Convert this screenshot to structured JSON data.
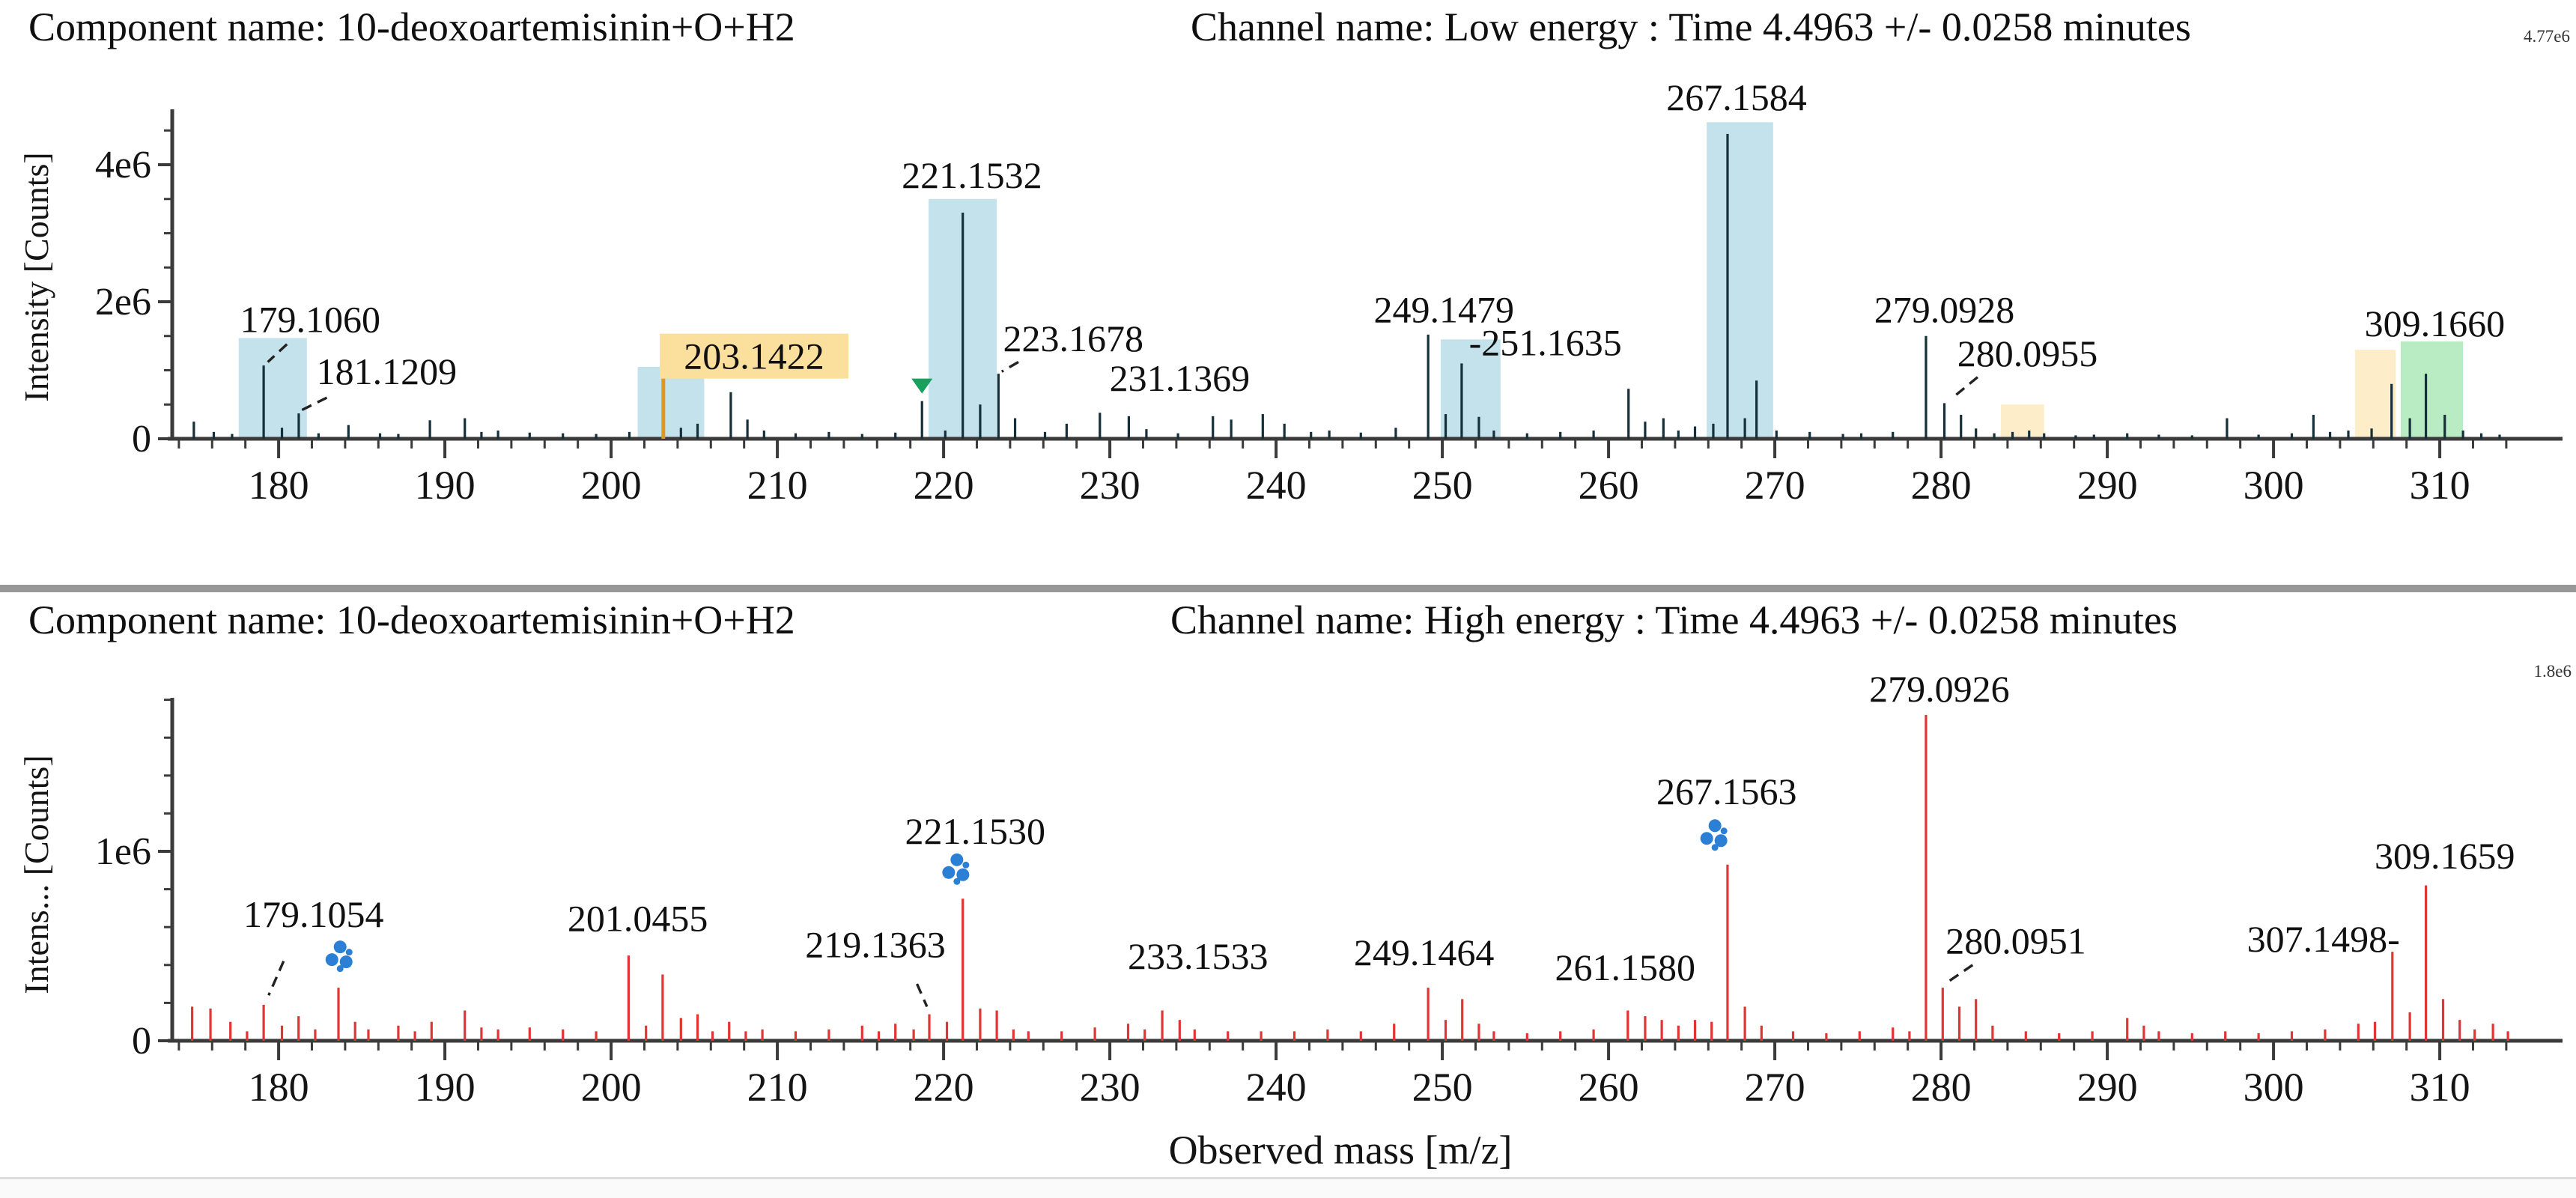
{
  "page": {
    "background": "#ffffff",
    "divider_color": "#979797"
  },
  "chart_data": [
    {
      "type": "bar",
      "subtype": "mass-spectrum-stick",
      "component_title": "Component name: 10-deoxoartemisinin+O+H2",
      "channel_title": "Channel name: Low energy : Time 4.4963 +/- 0.0258 minutes",
      "max_intensity_label": "4.77e6",
      "ylabel": "Intensity [Counts]",
      "xlabel": "",
      "xlim": [
        173.6,
        315.9
      ],
      "ylim_e6": [
        0,
        4.77
      ],
      "x_major_ticks": [
        180,
        190,
        200,
        210,
        220,
        230,
        240,
        250,
        260,
        270,
        280,
        290,
        300,
        310
      ],
      "x_minor_step": 2,
      "y_tick_labels": [
        {
          "v": 0,
          "t": "0"
        },
        {
          "v": 2,
          "t": "2e6"
        },
        {
          "v": 4,
          "t": "4e6"
        }
      ],
      "y_minor_step": 0.5,
      "peak_color": "#16303a",
      "colored_peaks": [
        [
          203.14,
          0.88,
          "#e2961c"
        ]
      ],
      "peaks": [
        [
          174.9,
          0.25
        ],
        [
          176.1,
          0.1
        ],
        [
          177.2,
          0.07
        ],
        [
          179.1,
          1.07
        ],
        [
          180.2,
          0.16
        ],
        [
          181.21,
          0.37
        ],
        [
          182.4,
          0.08
        ],
        [
          184.2,
          0.2
        ],
        [
          186.1,
          0.08
        ],
        [
          187.2,
          0.07
        ],
        [
          189.1,
          0.27
        ],
        [
          191.2,
          0.3
        ],
        [
          192.2,
          0.1
        ],
        [
          193.2,
          0.12
        ],
        [
          195.1,
          0.09
        ],
        [
          197.1,
          0.08
        ],
        [
          199.1,
          0.07
        ],
        [
          201.1,
          0.1
        ],
        [
          204.2,
          0.16
        ],
        [
          205.2,
          0.22
        ],
        [
          207.2,
          0.68
        ],
        [
          208.2,
          0.28
        ],
        [
          209.2,
          0.12
        ],
        [
          211.1,
          0.08
        ],
        [
          213.1,
          0.1
        ],
        [
          215.1,
          0.07
        ],
        [
          217.1,
          0.09
        ],
        [
          218.7,
          0.55
        ],
        [
          220.1,
          0.12
        ],
        [
          221.153,
          3.3
        ],
        [
          222.2,
          0.5
        ],
        [
          223.3,
          0.95
        ],
        [
          224.3,
          0.3
        ],
        [
          226.1,
          0.1
        ],
        [
          227.4,
          0.22
        ],
        [
          229.4,
          0.38
        ],
        [
          231.14,
          0.33
        ],
        [
          232.2,
          0.14
        ],
        [
          234.1,
          0.08
        ],
        [
          236.2,
          0.33
        ],
        [
          237.3,
          0.28
        ],
        [
          239.2,
          0.36
        ],
        [
          240.5,
          0.22
        ],
        [
          242.1,
          0.1
        ],
        [
          243.2,
          0.12
        ],
        [
          245.1,
          0.09
        ],
        [
          247.2,
          0.16
        ],
        [
          249.148,
          1.52
        ],
        [
          250.2,
          0.36
        ],
        [
          251.164,
          1.1
        ],
        [
          252.2,
          0.32
        ],
        [
          253.1,
          0.12
        ],
        [
          255.1,
          0.08
        ],
        [
          257.1,
          0.1
        ],
        [
          259.1,
          0.12
        ],
        [
          261.2,
          0.73
        ],
        [
          262.2,
          0.25
        ],
        [
          263.3,
          0.3
        ],
        [
          264.2,
          0.12
        ],
        [
          265.2,
          0.18
        ],
        [
          266.3,
          0.22
        ],
        [
          267.158,
          4.45
        ],
        [
          268.2,
          0.3
        ],
        [
          268.9,
          0.85
        ],
        [
          270.1,
          0.12
        ],
        [
          272.1,
          0.1
        ],
        [
          274.1,
          0.07
        ],
        [
          275.2,
          0.08
        ],
        [
          277.1,
          0.1
        ],
        [
          279.093,
          1.5
        ],
        [
          280.2,
          0.52
        ],
        [
          281.2,
          0.35
        ],
        [
          282.1,
          0.15
        ],
        [
          283.2,
          0.08
        ],
        [
          284.3,
          0.1
        ],
        [
          285.3,
          0.12
        ],
        [
          286.2,
          0.08
        ],
        [
          288.1,
          0.05
        ],
        [
          289.2,
          0.06
        ],
        [
          291.2,
          0.08
        ],
        [
          293.1,
          0.06
        ],
        [
          295.1,
          0.05
        ],
        [
          297.2,
          0.3
        ],
        [
          299.1,
          0.06
        ],
        [
          301.1,
          0.08
        ],
        [
          302.4,
          0.35
        ],
        [
          303.4,
          0.1
        ],
        [
          304.5,
          0.12
        ],
        [
          305.9,
          0.15
        ],
        [
          307.1,
          0.8
        ],
        [
          308.2,
          0.3
        ],
        [
          309.166,
          0.95
        ],
        [
          310.3,
          0.35
        ],
        [
          311.4,
          0.12
        ],
        [
          312.5,
          0.08
        ],
        [
          313.6,
          0.06
        ]
      ],
      "bands": [
        {
          "from": 177.6,
          "to": 181.7,
          "top": 1.47,
          "color": "#c3e2ec"
        },
        {
          "from": 201.6,
          "to": 205.6,
          "top": 1.05,
          "color": "#c3e2ec"
        },
        {
          "from": 219.1,
          "to": 223.2,
          "top": 3.5,
          "color": "#c3e2ec"
        },
        {
          "from": 249.9,
          "to": 253.5,
          "top": 1.45,
          "color": "#c3e2ec"
        },
        {
          "from": 265.9,
          "to": 269.9,
          "top": 4.62,
          "color": "#c3e2ec"
        },
        {
          "from": 283.6,
          "to": 286.2,
          "top": 0.5,
          "color": "#fdeec9"
        },
        {
          "from": 304.9,
          "to": 307.35,
          "top": 1.3,
          "color": "#fdeec9"
        },
        {
          "from": 307.65,
          "to": 311.4,
          "top": 1.42,
          "color": "#baecc4"
        }
      ],
      "labels": [
        {
          "t": "179.1060",
          "x": 181.9,
          "y": 1.56,
          "leader": [
            180.5,
            1.38,
            179.35,
            1.12
          ]
        },
        {
          "t": "181.1209",
          "x": 186.5,
          "y": 0.8,
          "leader": [
            182.9,
            0.6,
            181.4,
            0.42
          ]
        },
        {
          "t": "203.1422",
          "x": 208.6,
          "y": 1.02,
          "box": true,
          "box_color": "#fbdf9d"
        },
        {
          "t": "221.1532",
          "x": 221.7,
          "y": 3.66
        },
        {
          "t": "223.1678",
          "x": 227.8,
          "y": 1.28,
          "leader": [
            224.5,
            1.12,
            223.5,
            0.98
          ]
        },
        {
          "t": "231.1369",
          "x": 234.2,
          "y": 0.7
        },
        {
          "t": "249.1479",
          "x": 250.1,
          "y": 1.7
        },
        {
          "t": "-251.1635",
          "x": 256.2,
          "y": 1.22
        },
        {
          "t": "267.1584",
          "x": 267.7,
          "y": 4.8
        },
        {
          "t": "279.0928",
          "x": 280.2,
          "y": 1.7
        },
        {
          "t": "280.0955",
          "x": 285.2,
          "y": 1.06,
          "leader": [
            282.2,
            0.9,
            280.6,
            0.58
          ]
        },
        {
          "t": "309.1660",
          "x": 309.7,
          "y": 1.5
        }
      ],
      "markers": [
        {
          "kind": "triangle-down",
          "x": 218.7,
          "y": 0.78,
          "color": "#18a15c"
        }
      ]
    },
    {
      "type": "bar",
      "subtype": "mass-spectrum-stick",
      "component_title": "Component name: 10-deoxoartemisinin+O+H2",
      "channel_title": "Channel name: High energy : Time 4.4963 +/- 0.0258 minutes",
      "max_intensity_label": "1.8e6",
      "ylabel": "Intens... [Counts]",
      "xlabel": "Observed mass [m/z]",
      "xlim": [
        173.6,
        315.9
      ],
      "ylim_e6": [
        0,
        1.81
      ],
      "x_major_ticks": [
        180,
        190,
        200,
        210,
        220,
        230,
        240,
        250,
        260,
        270,
        280,
        290,
        300,
        310
      ],
      "x_minor_step": 2,
      "y_tick_labels": [
        {
          "v": 0,
          "t": "0"
        },
        {
          "v": 1,
          "t": "1e6"
        }
      ],
      "y_minor_step": 0.2,
      "peak_color": "#e13535",
      "colored_peaks": [],
      "peaks": [
        [
          174.8,
          0.18
        ],
        [
          175.9,
          0.17
        ],
        [
          177.1,
          0.1
        ],
        [
          178.1,
          0.05
        ],
        [
          179.1,
          0.19
        ],
        [
          180.2,
          0.08
        ],
        [
          181.2,
          0.13
        ],
        [
          182.2,
          0.06
        ],
        [
          183.6,
          0.28
        ],
        [
          184.6,
          0.1
        ],
        [
          185.4,
          0.06
        ],
        [
          187.2,
          0.08
        ],
        [
          188.2,
          0.05
        ],
        [
          189.2,
          0.1
        ],
        [
          191.2,
          0.16
        ],
        [
          192.2,
          0.07
        ],
        [
          193.2,
          0.06
        ],
        [
          195.1,
          0.07
        ],
        [
          197.1,
          0.06
        ],
        [
          199.1,
          0.05
        ],
        [
          201.05,
          0.45
        ],
        [
          202.1,
          0.08
        ],
        [
          203.1,
          0.35
        ],
        [
          204.2,
          0.12
        ],
        [
          205.2,
          0.14
        ],
        [
          206.1,
          0.05
        ],
        [
          207.1,
          0.1
        ],
        [
          208.1,
          0.05
        ],
        [
          209.1,
          0.06
        ],
        [
          211.1,
          0.05
        ],
        [
          213.1,
          0.06
        ],
        [
          215.1,
          0.08
        ],
        [
          216.1,
          0.05
        ],
        [
          217.1,
          0.09
        ],
        [
          218.2,
          0.06
        ],
        [
          219.14,
          0.14
        ],
        [
          220.2,
          0.1
        ],
        [
          221.153,
          0.75
        ],
        [
          222.2,
          0.17
        ],
        [
          223.2,
          0.16
        ],
        [
          224.2,
          0.06
        ],
        [
          225.1,
          0.05
        ],
        [
          227.1,
          0.05
        ],
        [
          229.1,
          0.07
        ],
        [
          231.1,
          0.09
        ],
        [
          232.1,
          0.06
        ],
        [
          233.153,
          0.16
        ],
        [
          234.2,
          0.11
        ],
        [
          235.1,
          0.06
        ],
        [
          237.1,
          0.05
        ],
        [
          239.1,
          0.05
        ],
        [
          241.1,
          0.05
        ],
        [
          243.1,
          0.06
        ],
        [
          245.1,
          0.05
        ],
        [
          247.1,
          0.09
        ],
        [
          249.146,
          0.28
        ],
        [
          250.2,
          0.11
        ],
        [
          251.2,
          0.22
        ],
        [
          252.2,
          0.09
        ],
        [
          253.1,
          0.05
        ],
        [
          255.1,
          0.04
        ],
        [
          257.1,
          0.05
        ],
        [
          259.1,
          0.06
        ],
        [
          261.158,
          0.16
        ],
        [
          262.2,
          0.13
        ],
        [
          263.2,
          0.11
        ],
        [
          264.2,
          0.08
        ],
        [
          265.2,
          0.11
        ],
        [
          266.2,
          0.1
        ],
        [
          267.156,
          0.93
        ],
        [
          268.2,
          0.18
        ],
        [
          269.2,
          0.08
        ],
        [
          271.1,
          0.05
        ],
        [
          273.1,
          0.04
        ],
        [
          275.1,
          0.05
        ],
        [
          277.1,
          0.07
        ],
        [
          278.1,
          0.05
        ],
        [
          279.093,
          1.72
        ],
        [
          280.1,
          0.28
        ],
        [
          281.1,
          0.18
        ],
        [
          282.1,
          0.22
        ],
        [
          283.1,
          0.08
        ],
        [
          285.1,
          0.05
        ],
        [
          287.1,
          0.04
        ],
        [
          289.1,
          0.05
        ],
        [
          291.2,
          0.12
        ],
        [
          292.2,
          0.08
        ],
        [
          293.1,
          0.05
        ],
        [
          295.1,
          0.04
        ],
        [
          297.1,
          0.05
        ],
        [
          299.1,
          0.04
        ],
        [
          301.1,
          0.05
        ],
        [
          303.1,
          0.06
        ],
        [
          305.1,
          0.09
        ],
        [
          306.1,
          0.1
        ],
        [
          307.15,
          0.47
        ],
        [
          308.2,
          0.15
        ],
        [
          309.166,
          0.82
        ],
        [
          310.2,
          0.22
        ],
        [
          311.2,
          0.11
        ],
        [
          312.1,
          0.06
        ],
        [
          313.2,
          0.09
        ],
        [
          314.1,
          0.05
        ]
      ],
      "bands": [],
      "labels": [
        {
          "t": "179.1054",
          "x": 182.1,
          "y": 0.6,
          "leader": [
            180.3,
            0.42,
            179.4,
            0.24
          ]
        },
        {
          "t": "201.0455",
          "x": 201.6,
          "y": 0.58
        },
        {
          "t": "219.1363",
          "x": 215.9,
          "y": 0.44,
          "leader": [
            218.4,
            0.3,
            219.0,
            0.18
          ]
        },
        {
          "t": "221.1530",
          "x": 221.9,
          "y": 1.04
        },
        {
          "t": "233.1533",
          "x": 235.3,
          "y": 0.38
        },
        {
          "t": "249.1464",
          "x": 248.9,
          "y": 0.4
        },
        {
          "t": "261.1580",
          "x": 261.0,
          "y": 0.32
        },
        {
          "t": "267.1563",
          "x": 267.1,
          "y": 1.25
        },
        {
          "t": "279.0926",
          "x": 279.9,
          "y": 1.79
        },
        {
          "t": "280.0951",
          "x": 284.5,
          "y": 0.46,
          "leader": [
            281.9,
            0.4,
            280.4,
            0.31
          ]
        },
        {
          "t": "307.1498-",
          "x": 303.0,
          "y": 0.47
        },
        {
          "t": "309.1659",
          "x": 310.3,
          "y": 0.91
        }
      ],
      "markers": [
        {
          "kind": "dot-cluster",
          "x": 183.7,
          "y": 0.44,
          "color": "#2b7fd4"
        },
        {
          "kind": "dot-cluster",
          "x": 220.8,
          "y": 0.9,
          "color": "#2b7fd4"
        },
        {
          "kind": "dot-cluster",
          "x": 266.4,
          "y": 1.08,
          "color": "#2b7fd4"
        }
      ]
    }
  ]
}
